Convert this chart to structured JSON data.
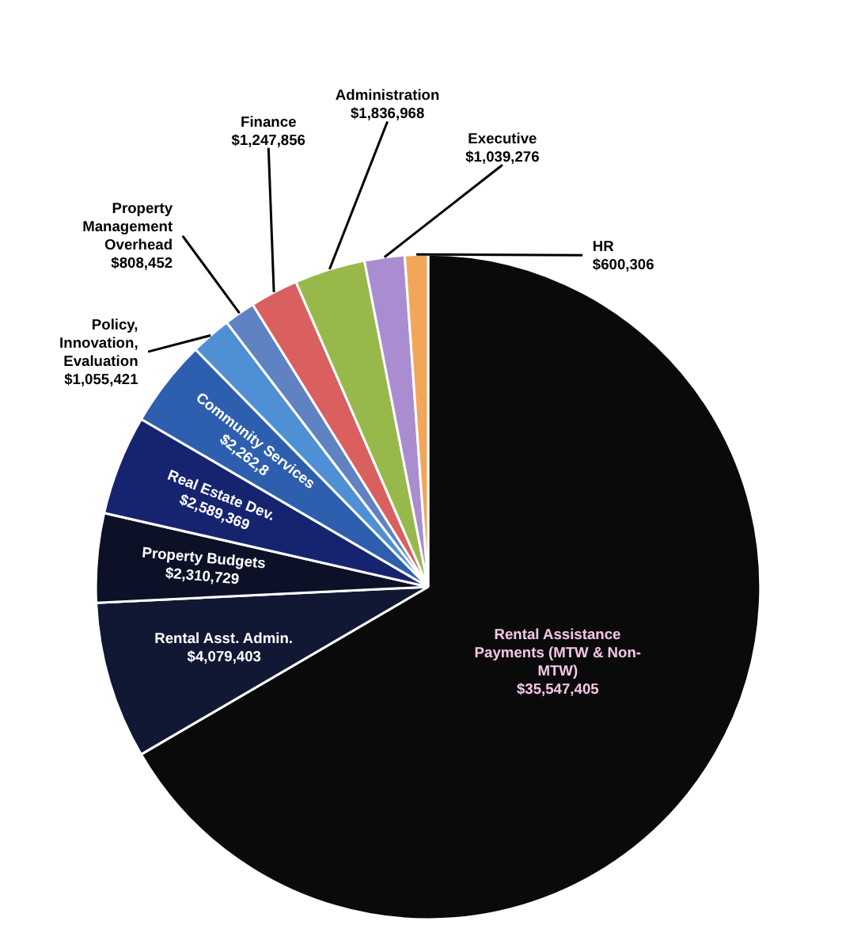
{
  "chart_data": {
    "type": "pie",
    "categories": [
      "Rental Assistance Payments (MTW & Non-MTW)",
      "Rental Asst. Admin.",
      "Property Budgets",
      "Real Estate Dev.",
      "Community Services",
      "Policy, Innovation, Evaluation",
      "Property Management Overhead",
      "Finance",
      "Administration",
      "Executive",
      "HR"
    ],
    "values": [
      35547405,
      4079403,
      2310729,
      2589369,
      2262800,
      1055421,
      808452,
      1247856,
      1836968,
      1039276,
      600306
    ],
    "value_labels": [
      "$35,547,405",
      "$4,079,403",
      "$2,310,729",
      "$2,589,369",
      "$2,262,8",
      "$1,055,421",
      "$808,452",
      "$1,247,856",
      "$1,836,968",
      "$1,039,276",
      "$600,306"
    ],
    "colors": [
      "#0a0a0a",
      "#111833",
      "#0c1128",
      "#162470",
      "#2e5fae",
      "#4f8fd4",
      "#5f82c2",
      "#d9605f",
      "#97b94c",
      "#a98dd0",
      "#f2a65a"
    ]
  }
}
